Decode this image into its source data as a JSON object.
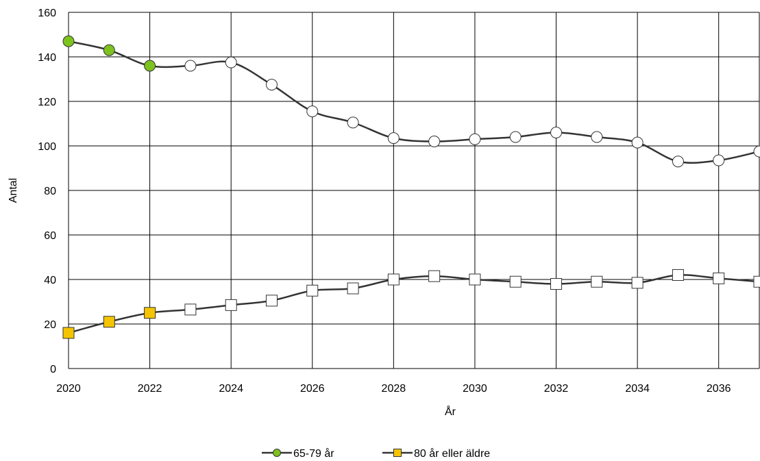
{
  "chart_data": {
    "type": "line",
    "title": "",
    "xlabel": "År",
    "ylabel": "Antal",
    "xlim": [
      2020,
      2037
    ],
    "ylim": [
      0,
      160
    ],
    "x_ticks": [
      2020,
      2022,
      2024,
      2026,
      2028,
      2030,
      2032,
      2034,
      2036
    ],
    "y_ticks": [
      0,
      20,
      40,
      60,
      80,
      100,
      120,
      140,
      160
    ],
    "grid": true,
    "legend_position": "bottom-center",
    "x": [
      2020,
      2021,
      2022,
      2023,
      2024,
      2025,
      2026,
      2027,
      2028,
      2029,
      2030,
      2031,
      2032,
      2033,
      2034,
      2035,
      2036,
      2037
    ],
    "observed_until": 2022,
    "series": [
      {
        "name": "65-79 år",
        "marker": "circle",
        "observed_color": "#7dc21e",
        "values": [
          147,
          143,
          136,
          136,
          137.5,
          127.5,
          115.5,
          110.5,
          103.5,
          102,
          103,
          104,
          106,
          104,
          101.5,
          93,
          93.5,
          97.5
        ]
      },
      {
        "name": "80 år eller äldre",
        "marker": "square",
        "observed_color": "#f5c400",
        "values": [
          16,
          21,
          25,
          26.5,
          28.5,
          30.5,
          35,
          36,
          40,
          41.5,
          40,
          39,
          38,
          39,
          38.5,
          42,
          40.5,
          39
        ]
      }
    ],
    "colors": {
      "line": "#333333",
      "grid": "#000000",
      "projected_fill": "#ffffff"
    }
  }
}
